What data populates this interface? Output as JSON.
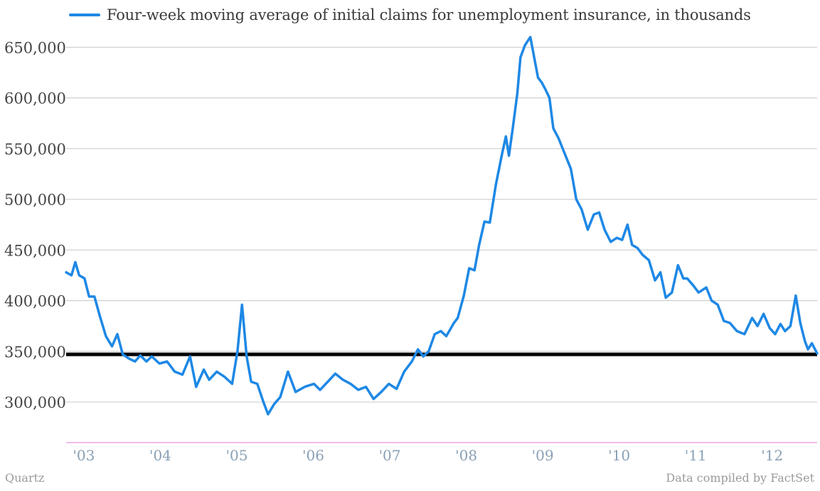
{
  "chart_data": {
    "type": "line",
    "legend": "Four-week moving average of initial claims for unemployment insurance, in thousands",
    "legend_position": "top-left",
    "grid": true,
    "ylim": [
      260000,
      665000
    ],
    "y_ticks": [
      300000,
      350000,
      400000,
      450000,
      500000,
      550000,
      600000,
      650000
    ],
    "y_tick_labels": [
      "300,000",
      "350,000",
      "400,000",
      "450,000",
      "500,000",
      "550,000",
      "600,000",
      "650,000"
    ],
    "x_range": [
      2002.88,
      2012.7
    ],
    "x_ticks": [
      2003,
      2004,
      2005,
      2006,
      2007,
      2008,
      2009,
      2010,
      2011,
      2012
    ],
    "x_tick_labels": [
      "'03",
      "'04",
      "'05",
      "'06",
      "'07",
      "'08",
      "'09",
      "'10",
      "'11",
      "'12"
    ],
    "reference_line": {
      "value": 347000,
      "color": "#000000"
    },
    "series": [
      {
        "name": "Four-week moving average of initial claims for unemployment insurance, in thousands",
        "color": "#1e88e5",
        "points": [
          [
            2002.88,
            428000
          ],
          [
            2002.95,
            425000
          ],
          [
            2003.0,
            438000
          ],
          [
            2003.05,
            425000
          ],
          [
            2003.12,
            422000
          ],
          [
            2003.18,
            404000
          ],
          [
            2003.25,
            404000
          ],
          [
            2003.32,
            385000
          ],
          [
            2003.4,
            365000
          ],
          [
            2003.48,
            355000
          ],
          [
            2003.55,
            367000
          ],
          [
            2003.62,
            347000
          ],
          [
            2003.7,
            343000
          ],
          [
            2003.78,
            340000
          ],
          [
            2003.85,
            346000
          ],
          [
            2003.93,
            340000
          ],
          [
            2004.0,
            345000
          ],
          [
            2004.1,
            338000
          ],
          [
            2004.2,
            340000
          ],
          [
            2004.3,
            330000
          ],
          [
            2004.4,
            327000
          ],
          [
            2004.5,
            345000
          ],
          [
            2004.58,
            315000
          ],
          [
            2004.68,
            332000
          ],
          [
            2004.75,
            322000
          ],
          [
            2004.85,
            330000
          ],
          [
            2004.95,
            325000
          ],
          [
            2005.05,
            318000
          ],
          [
            2005.12,
            350000
          ],
          [
            2005.18,
            396000
          ],
          [
            2005.24,
            345000
          ],
          [
            2005.3,
            320000
          ],
          [
            2005.38,
            318000
          ],
          [
            2005.46,
            300000
          ],
          [
            2005.52,
            288000
          ],
          [
            2005.6,
            298000
          ],
          [
            2005.68,
            305000
          ],
          [
            2005.78,
            330000
          ],
          [
            2005.88,
            310000
          ],
          [
            2006.0,
            315000
          ],
          [
            2006.12,
            318000
          ],
          [
            2006.2,
            312000
          ],
          [
            2006.3,
            320000
          ],
          [
            2006.4,
            328000
          ],
          [
            2006.5,
            322000
          ],
          [
            2006.6,
            318000
          ],
          [
            2006.7,
            312000
          ],
          [
            2006.8,
            315000
          ],
          [
            2006.9,
            303000
          ],
          [
            2007.0,
            310000
          ],
          [
            2007.1,
            318000
          ],
          [
            2007.2,
            313000
          ],
          [
            2007.3,
            330000
          ],
          [
            2007.4,
            340000
          ],
          [
            2007.48,
            352000
          ],
          [
            2007.55,
            345000
          ],
          [
            2007.62,
            350000
          ],
          [
            2007.7,
            367000
          ],
          [
            2007.78,
            370000
          ],
          [
            2007.85,
            365000
          ],
          [
            2007.95,
            378000
          ],
          [
            2008.0,
            383000
          ],
          [
            2008.08,
            405000
          ],
          [
            2008.15,
            432000
          ],
          [
            2008.22,
            430000
          ],
          [
            2008.28,
            455000
          ],
          [
            2008.35,
            478000
          ],
          [
            2008.42,
            477000
          ],
          [
            2008.5,
            515000
          ],
          [
            2008.58,
            545000
          ],
          [
            2008.63,
            562000
          ],
          [
            2008.67,
            543000
          ],
          [
            2008.72,
            570000
          ],
          [
            2008.78,
            605000
          ],
          [
            2008.82,
            640000
          ],
          [
            2008.88,
            652000
          ],
          [
            2008.95,
            660000
          ],
          [
            2009.0,
            640000
          ],
          [
            2009.05,
            620000
          ],
          [
            2009.1,
            615000
          ],
          [
            2009.15,
            608000
          ],
          [
            2009.2,
            600000
          ],
          [
            2009.25,
            570000
          ],
          [
            2009.32,
            560000
          ],
          [
            2009.4,
            545000
          ],
          [
            2009.48,
            530000
          ],
          [
            2009.55,
            500000
          ],
          [
            2009.62,
            490000
          ],
          [
            2009.7,
            470000
          ],
          [
            2009.78,
            485000
          ],
          [
            2009.85,
            487000
          ],
          [
            2009.92,
            470000
          ],
          [
            2010.0,
            458000
          ],
          [
            2010.08,
            462000
          ],
          [
            2010.15,
            460000
          ],
          [
            2010.22,
            475000
          ],
          [
            2010.28,
            455000
          ],
          [
            2010.35,
            452000
          ],
          [
            2010.42,
            445000
          ],
          [
            2010.5,
            440000
          ],
          [
            2010.58,
            420000
          ],
          [
            2010.65,
            428000
          ],
          [
            2010.72,
            403000
          ],
          [
            2010.8,
            408000
          ],
          [
            2010.88,
            435000
          ],
          [
            2010.95,
            422000
          ],
          [
            2011.0,
            422000
          ],
          [
            2011.08,
            415000
          ],
          [
            2011.15,
            408000
          ],
          [
            2011.25,
            413000
          ],
          [
            2011.32,
            400000
          ],
          [
            2011.4,
            396000
          ],
          [
            2011.48,
            380000
          ],
          [
            2011.56,
            378000
          ],
          [
            2011.65,
            370000
          ],
          [
            2011.75,
            367000
          ],
          [
            2011.85,
            383000
          ],
          [
            2011.92,
            375000
          ],
          [
            2012.0,
            387000
          ],
          [
            2012.08,
            373000
          ],
          [
            2012.15,
            367000
          ],
          [
            2012.22,
            377000
          ],
          [
            2012.28,
            370000
          ],
          [
            2012.35,
            375000
          ],
          [
            2012.42,
            405000
          ],
          [
            2012.48,
            378000
          ],
          [
            2012.54,
            360000
          ],
          [
            2012.58,
            352000
          ],
          [
            2012.63,
            358000
          ],
          [
            2012.7,
            348000
          ]
        ]
      }
    ]
  },
  "footer": {
    "source_left": "Quartz",
    "source_right": "Data compiled by FactSet"
  }
}
